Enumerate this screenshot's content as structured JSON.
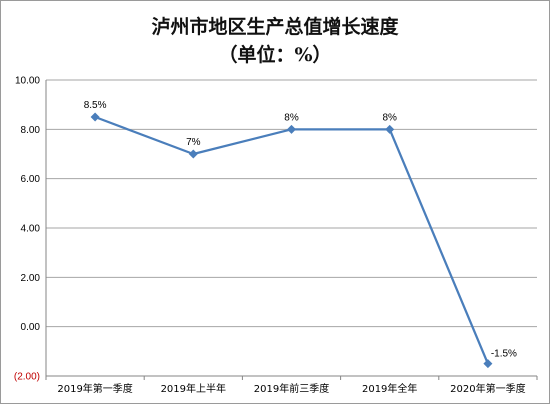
{
  "chart_data": {
    "type": "line",
    "title": "泸州市地区生产总值增长速度",
    "subtitle": "（单位：%）",
    "categories": [
      "2019年第一季度",
      "2019年上半年",
      "2019年前三季度",
      "2019年全年",
      "2020年第一季度"
    ],
    "series": [
      {
        "values": [
          8.5,
          7,
          8,
          8,
          -1.5
        ],
        "data_labels": [
          "8.5%",
          "7%",
          "8%",
          "8%",
          "-1.5%"
        ],
        "color": "#4a7ebb"
      }
    ],
    "ylim": [
      -2,
      10
    ],
    "y_ticks": [
      10,
      8,
      6,
      4,
      2,
      0,
      -2
    ],
    "y_tick_labels": [
      "10.00",
      "8.00",
      "6.00",
      "4.00",
      "2.00",
      "0.00",
      "(2.00)"
    ],
    "negative_tick_color": "#c00000",
    "grid": true,
    "grid_color": "#a6a6a6",
    "legend": "none"
  }
}
